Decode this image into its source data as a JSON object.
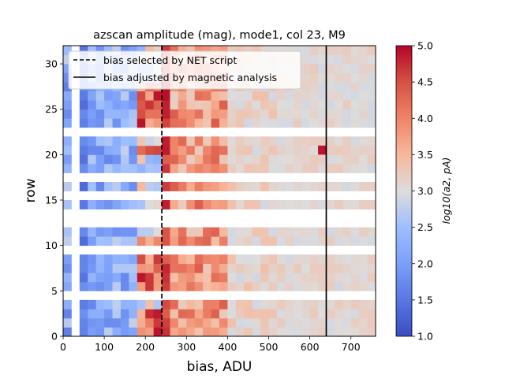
{
  "chart_data": {
    "type": "heatmap",
    "title": "azscan amplitude (mag), mode1, col 23, M9",
    "xlabel": "bias, ADU",
    "ylabel": "row",
    "xlim": [
      0,
      760
    ],
    "ylim": [
      0,
      32
    ],
    "x_ticks": [
      0,
      100,
      200,
      300,
      400,
      500,
      600,
      700
    ],
    "y_ticks": [
      0,
      5,
      10,
      15,
      20,
      25,
      30
    ],
    "bin_width_adu": 20,
    "rows_present": [
      0,
      1,
      2,
      3,
      5,
      6,
      7,
      8,
      10,
      11,
      14,
      16,
      18,
      19,
      20,
      21,
      23,
      24,
      25,
      26,
      27,
      28,
      29,
      30,
      31
    ],
    "colorbar": {
      "label": "log10(a2, pA)",
      "range": [
        1.0,
        5.0
      ],
      "ticks": [
        "1.0",
        "1.5",
        "2.0",
        "2.5",
        "3.0",
        "3.5",
        "4.0",
        "4.5",
        "5.0"
      ],
      "colormap": "coolwarm"
    },
    "vlines": [
      {
        "x": 240,
        "style": "dashed",
        "label": "bias selected by NET script"
      },
      {
        "x": 640,
        "style": "solid",
        "label": "bias adjusted by magnetic analysis"
      }
    ],
    "legend_position": "upper-left",
    "cell_values_note": "log10 amplitude per (row, bias bin); low (~1.3-2.0) for bias < 200, peaks near 5.0 for bias 180-240 on many rows, tapering to ~3.0 above 400"
  }
}
